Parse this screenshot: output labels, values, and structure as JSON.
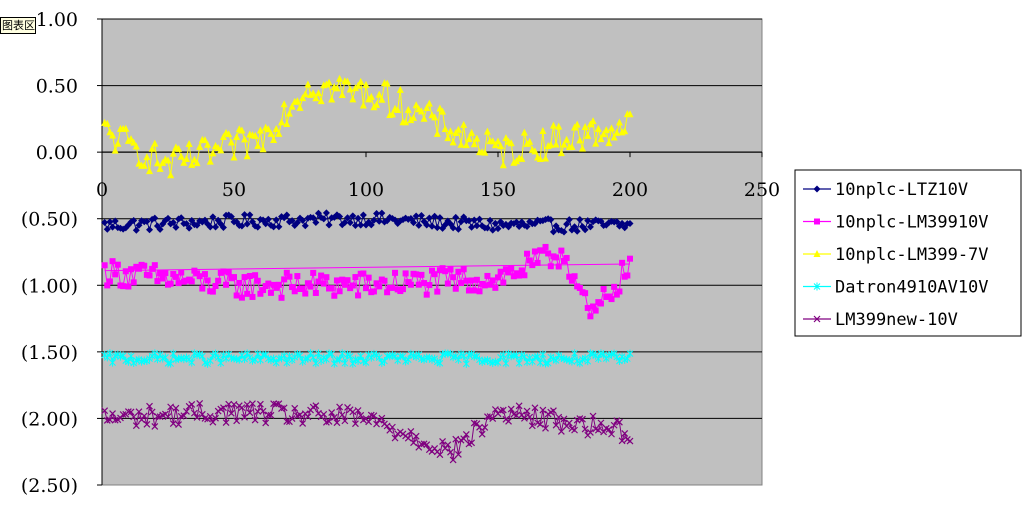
{
  "tooltip": {
    "label": "图表区"
  },
  "chart_data": {
    "type": "line",
    "xlim": [
      0,
      250
    ],
    "ylim": [
      -2.5,
      1.0
    ],
    "x_ticks": [
      0,
      50,
      100,
      150,
      200,
      250
    ],
    "x_tick_labels": [
      "0",
      "50",
      "100",
      "150",
      "200",
      "250"
    ],
    "y_ticks": [
      1.0,
      0.5,
      0.0,
      -0.5,
      -1.0,
      -1.5,
      -2.0,
      -2.5
    ],
    "y_tick_labels": [
      "1.00",
      "0.50",
      "0.00",
      "(0.50)",
      "(1.00)",
      "(1.50)",
      "(2.00)",
      "(2.50)"
    ],
    "negative_label_color": "#cc0000",
    "plot_background": "#c0c0c0",
    "grid": {
      "horizontal": true,
      "vertical": false
    },
    "legend_position": "right",
    "x_count": 200,
    "series": [
      {
        "name": "10nplc-LTZ10V",
        "color": "#000080",
        "marker": "diamond",
        "mean": -0.52,
        "amplitude": 0.05,
        "trend": false,
        "x": [
          1,
          50,
          100,
          150,
          200
        ],
        "values": [
          -0.55,
          -0.52,
          -0.5,
          -0.55,
          -0.55
        ]
      },
      {
        "name": "10nplc-LM39910V",
        "color": "#ff00ff",
        "marker": "square",
        "mean": -1.0,
        "amplitude": 0.1,
        "trend": true,
        "trend_line": [
          -0.89,
          -0.84
        ],
        "x": [
          1,
          50,
          100,
          150,
          175,
          185,
          200
        ],
        "values": [
          -0.9,
          -1.0,
          -1.0,
          -0.95,
          -0.75,
          -1.25,
          -0.85
        ]
      },
      {
        "name": "10nplc-LM399-7V",
        "color": "#ffff00",
        "marker": "triangle",
        "mean": 0.15,
        "amplitude": 0.12,
        "trend": false,
        "x": [
          1,
          25,
          60,
          78,
          105,
          150,
          200
        ],
        "values": [
          0.15,
          -0.1,
          0.1,
          0.5,
          0.43,
          0.0,
          0.2
        ]
      },
      {
        "name": "Datron4910AV10V",
        "color": "#00ffff",
        "marker": "star",
        "mean": -1.55,
        "amplitude": 0.04,
        "trend": false,
        "x": [
          1,
          50,
          100,
          150,
          200
        ],
        "values": [
          -1.55,
          -1.55,
          -1.55,
          -1.55,
          -1.55
        ]
      },
      {
        "name": "LM399new-10V",
        "color": "#800080",
        "marker": "x",
        "mean": -1.98,
        "amplitude": 0.08,
        "trend": false,
        "x": [
          1,
          50,
          100,
          133,
          150,
          200
        ],
        "values": [
          -2.0,
          -1.95,
          -2.0,
          -2.25,
          -1.95,
          -2.1
        ]
      }
    ]
  }
}
